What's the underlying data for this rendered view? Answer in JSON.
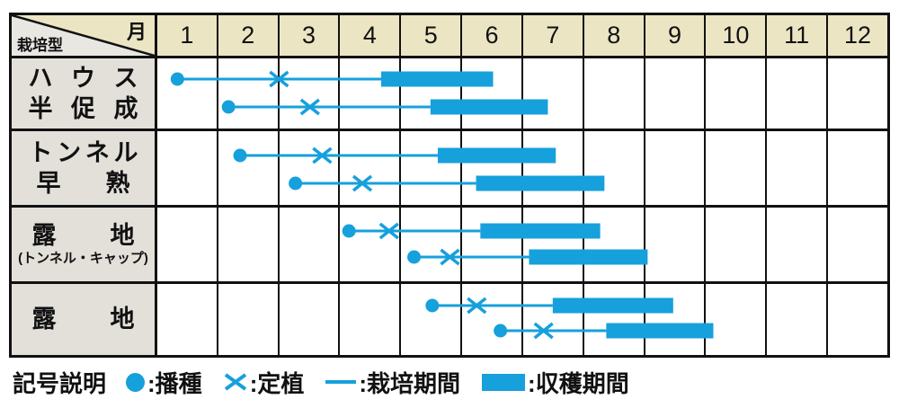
{
  "colors": {
    "accent": "#16a0dc",
    "header_bg": "#ebe5c4",
    "corner_bg": "#e9e7e2",
    "label_bg": "#e3e0da",
    "grid": "#111111"
  },
  "header": {
    "corner_month_label": "月",
    "corner_type_label": "栽培型",
    "months": [
      "1",
      "2",
      "3",
      "4",
      "5",
      "6",
      "7",
      "8",
      "9",
      "10",
      "11",
      "12"
    ]
  },
  "rows": [
    {
      "label_lines": [
        "ハウス",
        "半促成"
      ]
    },
    {
      "label_lines": [
        "トンネル",
        "早熟"
      ]
    },
    {
      "label_lines": [
        "露地",
        "(トンネル・キャップ)"
      ]
    },
    {
      "label_lines": [
        "露地"
      ]
    }
  ],
  "legend": {
    "title": "記号説明",
    "items": [
      {
        "symbol": "sowing-dot",
        "label": ":播種"
      },
      {
        "symbol": "transplant-cross",
        "label": ":定植"
      },
      {
        "symbol": "growing-line",
        "label": ":栽培期間"
      },
      {
        "symbol": "harvest-bar",
        "label": ":収穫期間"
      }
    ]
  },
  "chart_data": {
    "type": "gantt",
    "x_axis": {
      "label": "月",
      "ticks": [
        "1",
        "2",
        "3",
        "4",
        "5",
        "6",
        "7",
        "8",
        "9",
        "10",
        "11",
        "12"
      ],
      "range_months": [
        0,
        12
      ]
    },
    "encoding": {
      "sowing": "filled circle",
      "transplanting": "x mark",
      "growing_period": "thin line from sowing to harvest start",
      "harvest_period": "thick bar"
    },
    "unit_note": "numeric values are in months; 0 = start of January, 12 = end of December",
    "rows": [
      {
        "name": "ハウス半促成",
        "series": [
          {
            "sowing": 0.33,
            "transplanting": 2.0,
            "harvest": [
              3.68,
              5.52
            ]
          },
          {
            "sowing": 1.17,
            "transplanting": 2.51,
            "harvest": [
              4.49,
              6.42
            ]
          }
        ]
      },
      {
        "name": "トンネル早熟",
        "series": [
          {
            "sowing": 1.36,
            "transplanting": 2.71,
            "harvest": [
              4.61,
              6.55
            ]
          },
          {
            "sowing": 2.27,
            "transplanting": 3.37,
            "harvest": [
              5.24,
              7.35
            ]
          }
        ]
      },
      {
        "name": "露地(トンネル・キャップ)",
        "series": [
          {
            "sowing": 3.15,
            "transplanting": 3.81,
            "harvest": [
              5.31,
              7.28
            ]
          },
          {
            "sowing": 4.22,
            "transplanting": 4.81,
            "harvest": [
              6.11,
              8.06
            ]
          }
        ]
      },
      {
        "name": "露地",
        "series": [
          {
            "sowing": 4.52,
            "transplanting": 5.25,
            "harvest": [
              6.5,
              8.48
            ]
          },
          {
            "sowing": 5.64,
            "transplanting": 6.35,
            "harvest": [
              7.38,
              9.14
            ]
          }
        ]
      }
    ]
  }
}
